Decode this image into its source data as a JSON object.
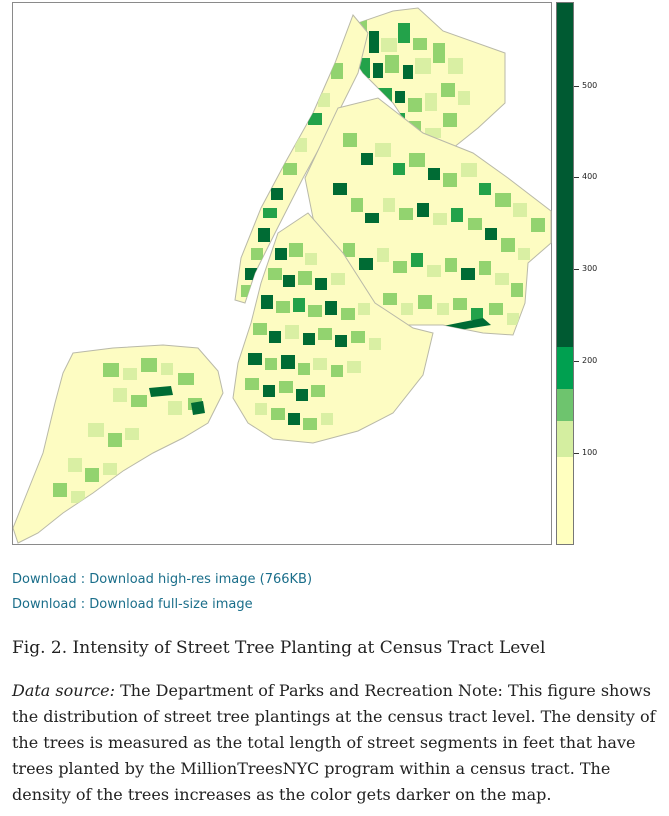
{
  "legend": {
    "colors": [
      "#ffffbf",
      "#d4eea0",
      "#6ec46e",
      "#00a050",
      "#005a32"
    ],
    "ticks": [
      "500",
      "400",
      "300",
      "200",
      "100"
    ]
  },
  "links": {
    "download_highres": "Download : Download high-res image (766KB)",
    "download_fullsize": "Download : Download full-size image"
  },
  "figure": {
    "caption": "Fig. 2. Intensity of Street Tree Planting at Census Tract Level",
    "source_label": "Data source:",
    "note": " The Department of Parks and Recreation Note: This figure shows the distribution of street tree plantings at the census tract level. The density of the trees is measured as the total length of street segments in feet that have trees planted by the MillionTreesNYC program within a census tract. The density of the trees increases as the color gets darker on the map."
  },
  "map_colors": {
    "base": "#fdfcc2",
    "light": "#d9efa3",
    "mid": "#92d36f",
    "bright": "#23a24a",
    "dark": "#006b34",
    "border": "#b9b9a8"
  }
}
